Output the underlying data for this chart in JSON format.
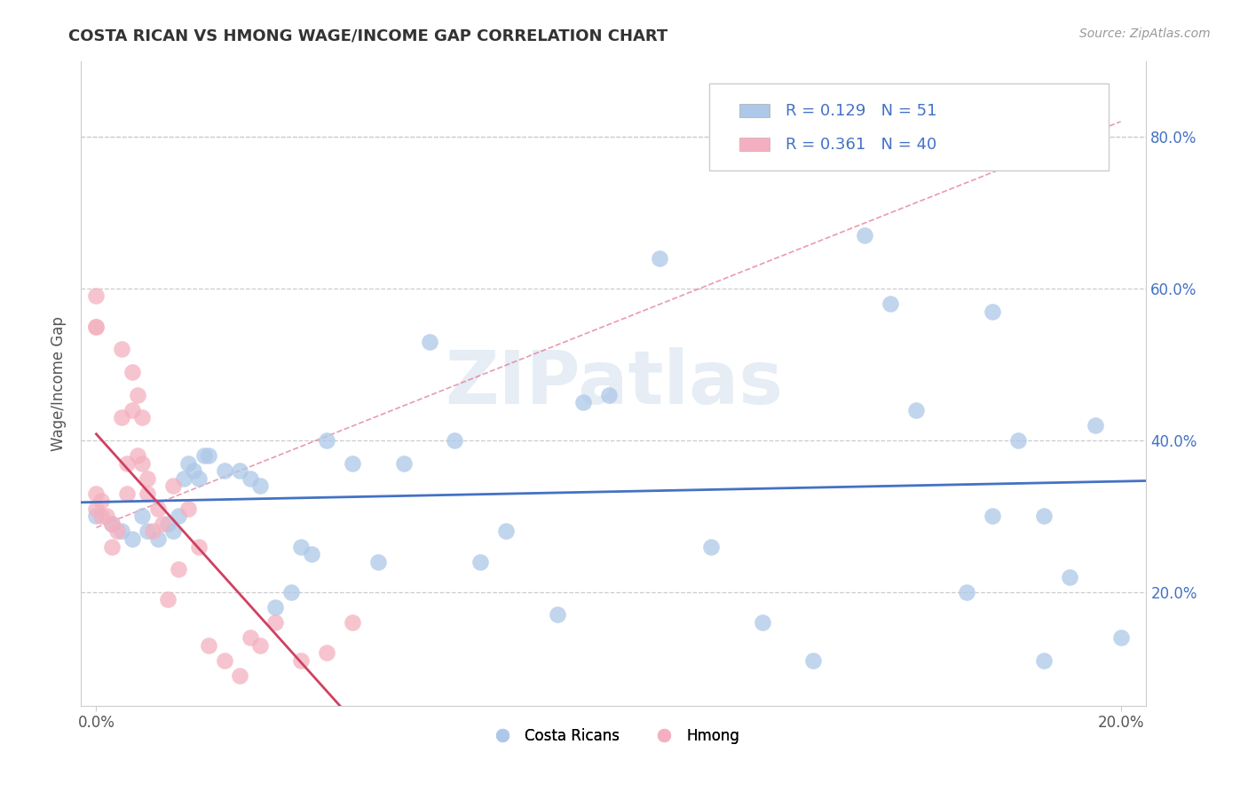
{
  "title": "COSTA RICAN VS HMONG WAGE/INCOME GAP CORRELATION CHART",
  "source": "Source: ZipAtlas.com",
  "ylabel_label": "Wage/Income Gap",
  "xlim": [
    -0.003,
    0.205
  ],
  "ylim": [
    0.05,
    0.9
  ],
  "y_ticks": [
    0.2,
    0.4,
    0.6,
    0.8
  ],
  "y_tick_labels": [
    "20.0%",
    "40.0%",
    "60.0%",
    "80.0%"
  ],
  "blue_R": 0.129,
  "blue_N": 51,
  "pink_R": 0.361,
  "pink_N": 40,
  "blue_color": "#adc8e8",
  "blue_line_color": "#4472c4",
  "pink_color": "#f4b0c0",
  "pink_line_color": "#d04060",
  "legend_label_blue": "Costa Ricans",
  "legend_label_pink": "Hmong",
  "blue_scatter_x": [
    0.0,
    0.003,
    0.005,
    0.007,
    0.009,
    0.01,
    0.012,
    0.014,
    0.015,
    0.016,
    0.017,
    0.018,
    0.019,
    0.02,
    0.021,
    0.022,
    0.025,
    0.028,
    0.03,
    0.032,
    0.035,
    0.038,
    0.04,
    0.042,
    0.045,
    0.05,
    0.055,
    0.06,
    0.065,
    0.07,
    0.075,
    0.08,
    0.09,
    0.095,
    0.1,
    0.11,
    0.12,
    0.13,
    0.14,
    0.15,
    0.155,
    0.16,
    0.17,
    0.175,
    0.18,
    0.185,
    0.19,
    0.195,
    0.2,
    0.185,
    0.175
  ],
  "blue_scatter_y": [
    0.3,
    0.29,
    0.28,
    0.27,
    0.3,
    0.28,
    0.27,
    0.29,
    0.28,
    0.3,
    0.35,
    0.37,
    0.36,
    0.35,
    0.38,
    0.38,
    0.36,
    0.36,
    0.35,
    0.34,
    0.18,
    0.2,
    0.26,
    0.25,
    0.4,
    0.37,
    0.24,
    0.37,
    0.53,
    0.4,
    0.24,
    0.28,
    0.17,
    0.45,
    0.46,
    0.64,
    0.26,
    0.16,
    0.11,
    0.67,
    0.58,
    0.44,
    0.2,
    0.57,
    0.4,
    0.3,
    0.22,
    0.42,
    0.14,
    0.11,
    0.3
  ],
  "pink_scatter_x": [
    0.0,
    0.0,
    0.0,
    0.0,
    0.0,
    0.001,
    0.001,
    0.002,
    0.003,
    0.003,
    0.004,
    0.005,
    0.005,
    0.006,
    0.006,
    0.007,
    0.007,
    0.008,
    0.008,
    0.009,
    0.009,
    0.01,
    0.01,
    0.011,
    0.012,
    0.013,
    0.014,
    0.015,
    0.016,
    0.018,
    0.02,
    0.022,
    0.025,
    0.028,
    0.03,
    0.032,
    0.035,
    0.04,
    0.045,
    0.05
  ],
  "pink_scatter_y": [
    0.59,
    0.55,
    0.33,
    0.31,
    0.55,
    0.3,
    0.32,
    0.3,
    0.26,
    0.29,
    0.28,
    0.52,
    0.43,
    0.37,
    0.33,
    0.49,
    0.44,
    0.46,
    0.38,
    0.43,
    0.37,
    0.35,
    0.33,
    0.28,
    0.31,
    0.29,
    0.19,
    0.34,
    0.23,
    0.31,
    0.26,
    0.13,
    0.11,
    0.09,
    0.14,
    0.13,
    0.16,
    0.11,
    0.12,
    0.16
  ],
  "ref_line_x": [
    0.0,
    0.2
  ],
  "ref_line_y": [
    0.285,
    0.82
  ],
  "watermark": "ZIPatlas",
  "background_color": "#ffffff",
  "grid_color": "#cccccc"
}
